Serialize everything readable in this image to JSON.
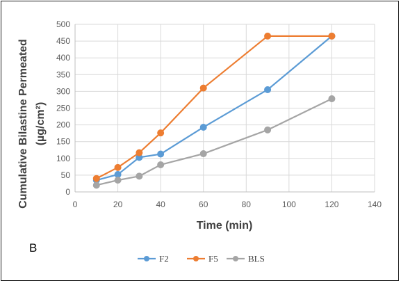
{
  "chart_data": {
    "type": "line",
    "panel_label": "B",
    "xlabel": "Time (min)",
    "ylabel_line1": "Cumulative Bilastine Permeated",
    "ylabel_line2": "(µg/cm²)",
    "xlim": [
      0,
      140
    ],
    "ylim": [
      0,
      500
    ],
    "x_ticks": [
      0,
      20,
      40,
      60,
      80,
      100,
      120,
      140
    ],
    "y_ticks": [
      0,
      50,
      100,
      150,
      200,
      250,
      300,
      350,
      400,
      450,
      500
    ],
    "grid": true,
    "legend_position": "bottom",
    "x": [
      10,
      20,
      30,
      40,
      60,
      90,
      120
    ],
    "series": [
      {
        "name": "F2",
        "color": "#5b9bd5",
        "values": [
          35,
          52,
          103,
          113,
          193,
          305,
          465
        ]
      },
      {
        "name": "F5",
        "color": "#ed7d31",
        "values": [
          40,
          73,
          117,
          176,
          310,
          465,
          465
        ]
      },
      {
        "name": "BLS",
        "color": "#a5a5a5",
        "values": [
          20,
          35,
          47,
          81,
          114,
          185,
          278
        ]
      }
    ]
  }
}
